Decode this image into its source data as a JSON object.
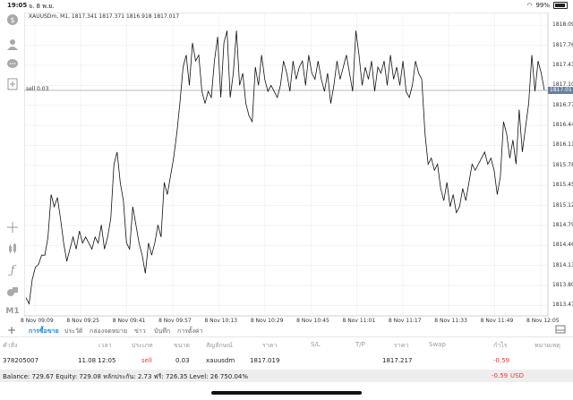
{
  "status_bar": {
    "time": "19:05",
    "date": "จ. 8 พ.ย.",
    "battery": "99%"
  },
  "chart": {
    "symbol_line": "XAUUSDm, M1, 1817.341 1817.371 1816.918 1817.017",
    "sell_label": "sell 0.03",
    "current_price": "1817.017",
    "y_ticks": [
      "1818.090",
      "1817.760",
      "1817.430",
      "1817.100",
      "1816.770",
      "1816.440",
      "1816.110",
      "1815.780",
      "1815.450",
      "1815.120",
      "1814.790",
      "1814.460",
      "1814.130",
      "1813.800",
      "1813.470"
    ],
    "x_ticks": [
      "8 Nov 09:09",
      "8 Nov 09:25",
      "8 Nov 09:41",
      "8 Nov 09:57",
      "8 Nov 10:13",
      "8 Nov 10:29",
      "8 Nov 10:45",
      "8 Nov 11:01",
      "8 Nov 11:17",
      "8 Nov 11:33",
      "8 Nov 11:49",
      "8 Nov 12:05"
    ]
  },
  "chart_data": {
    "type": "line",
    "title": "XAUUSDm, M1",
    "xlabel": "",
    "ylabel": "",
    "ylim": [
      1813.3,
      1818.3
    ],
    "hline": {
      "label": "sell 0.03",
      "value": 1817.017
    },
    "values": [
      1813.6,
      1813.5,
      1813.9,
      1814.1,
      1814.15,
      1814.3,
      1814.3,
      1814.6,
      1815.3,
      1815.1,
      1815.25,
      1814.9,
      1814.5,
      1814.2,
      1814.4,
      1814.6,
      1814.4,
      1814.7,
      1814.5,
      1814.6,
      1814.5,
      1814.4,
      1814.6,
      1814.5,
      1814.8,
      1814.4,
      1814.6,
      1814.9,
      1815.8,
      1816.0,
      1815.5,
      1815.2,
      1814.5,
      1814.4,
      1815.1,
      1814.8,
      1814.5,
      1814.3,
      1814.0,
      1814.5,
      1814.3,
      1814.5,
      1814.8,
      1814.6,
      1815.5,
      1815.3,
      1815.6,
      1815.9,
      1816.3,
      1816.8,
      1817.4,
      1817.6,
      1817.1,
      1817.8,
      1817.5,
      1817.6,
      1817.0,
      1816.8,
      1817.0,
      1816.9,
      1817.5,
      1817.9,
      1816.9,
      1817.8,
      1818.0,
      1816.9,
      1817.3,
      1818.0,
      1817.1,
      1817.3,
      1816.8,
      1816.6,
      1816.5,
      1817.4,
      1817.1,
      1817.6,
      1817.2,
      1817.0,
      1817.1,
      1817.0,
      1816.9,
      1817.1,
      1817.5,
      1817.3,
      1817.0,
      1817.5,
      1817.2,
      1817.4,
      1817.5,
      1817.1,
      1817.6,
      1817.3,
      1817.2,
      1817.5,
      1817.2,
      1817.0,
      1817.3,
      1816.8,
      1817.1,
      1817.5,
      1817.2,
      1817.4,
      1817.6,
      1817.3,
      1817.0,
      1818.0,
      1817.6,
      1817.1,
      1817.4,
      1817.2,
      1817.5,
      1817.0,
      1817.4,
      1817.3,
      1817.5,
      1817.1,
      1817.6,
      1817.2,
      1817.4,
      1817.1,
      1817.5,
      1817.0,
      1816.9,
      1817.1,
      1817.5,
      1817.3,
      1817.2,
      1816.3,
      1815.8,
      1815.9,
      1815.7,
      1815.8,
      1815.4,
      1815.2,
      1815.5,
      1815.1,
      1815.3,
      1815.0,
      1815.1,
      1815.4,
      1815.2,
      1815.5,
      1815.8,
      1815.7,
      1815.8,
      1815.9,
      1816.0,
      1815.8,
      1815.9,
      1815.7,
      1815.3,
      1815.6,
      1816.5,
      1816.3,
      1815.9,
      1816.2,
      1815.8,
      1816.7,
      1816.0,
      1816.4,
      1816.8,
      1817.6,
      1817.0,
      1817.5,
      1817.3,
      1817.02
    ],
    "x_ticks": [
      "8 Nov 09:09",
      "8 Nov 09:25",
      "8 Nov 09:41",
      "8 Nov 09:57",
      "8 Nov 10:13",
      "8 Nov 10:29",
      "8 Nov 10:45",
      "8 Nov 11:01",
      "8 Nov 11:17",
      "8 Nov 11:33",
      "8 Nov 11:49",
      "8 Nov 12:05"
    ],
    "grid": true
  },
  "tabs": [
    {
      "label": "การซื้อขาย",
      "active": true
    },
    {
      "label": "ประวัติ"
    },
    {
      "label": "กล่องจดหมาย"
    },
    {
      "label": "ข่าว"
    },
    {
      "label": "บันทึก"
    },
    {
      "label": "การตั้งค่า"
    }
  ],
  "table": {
    "headers": [
      "คำสั่ง",
      "เวลา",
      "ประเภท",
      "ขนาด",
      "สัญลักษณ์",
      "ราคา",
      "S/L",
      "T/P",
      "ราคา",
      "Swap",
      "กำไร",
      "หมายเหตุ"
    ],
    "row": {
      "order": "378205007",
      "time": "11.08 12:05",
      "type": "sell",
      "size": "0.03",
      "symbol": "xauusdm",
      "price_open": "1817.019",
      "sl": "",
      "tp": "",
      "price_current": "1817.217",
      "swap": "",
      "profit": "-0.59",
      "comment": ""
    }
  },
  "summary": {
    "text": "Balance: 729.67 Equity: 729.08 หลักประกัน: 2.73 ฟรี: 726.35 Level: 26 750.04%",
    "profit": "-0.59",
    "currency": "USD"
  },
  "colors": {
    "accent": "#1e88e5",
    "loss": "#e53935",
    "price_badge": "#6b7f9e"
  }
}
